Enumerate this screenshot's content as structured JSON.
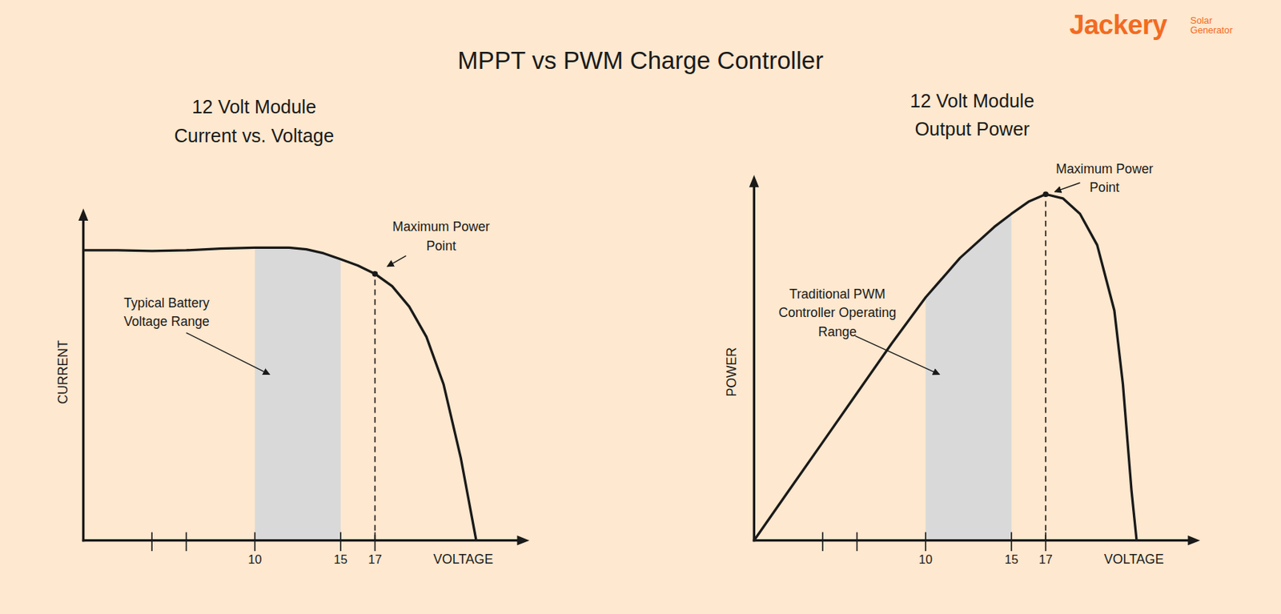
{
  "title": "MPPT vs PWM Charge Controller",
  "logo": {
    "text": "Jackery",
    "subtext": [
      "Solar",
      "Generator"
    ]
  },
  "chart_data": [
    {
      "type": "line",
      "title": [
        "12 Volt Module",
        "Current vs. Voltage"
      ],
      "x_label": "VOLTAGE",
      "y_label": "CURRENT",
      "x": [
        0,
        2,
        4,
        6,
        8,
        10,
        12,
        13,
        14,
        15,
        16,
        17,
        18,
        19,
        20,
        21,
        22,
        22.9
      ],
      "series": [
        {
          "color": "#1a1a1a",
          "values": [
            8.74,
            8.74,
            8.72,
            8.74,
            8.79,
            8.82,
            8.82,
            8.77,
            8.65,
            8.47,
            8.28,
            8.03,
            7.66,
            7.04,
            6.13,
            4.7,
            2.49,
            0
          ]
        }
      ],
      "xlim": [
        0,
        26
      ],
      "xticks": [
        {
          "value": 4,
          "label": null
        },
        {
          "value": 6,
          "label": null
        },
        10,
        15,
        17
      ],
      "ylim": [
        0,
        10
      ],
      "tick_labels": "x",
      "band": {
        "x": [
          10,
          15
        ],
        "label": [
          "Typical Battery",
          "Voltage Range"
        ]
      },
      "annotations": [
        {
          "text": [
            "Maximum Power",
            "Point"
          ],
          "x": 17,
          "y": 8.03
        }
      ]
    },
    {
      "type": "line",
      "title": [
        "12 Volt Module",
        "Output Power"
      ],
      "x_label": "VOLTAGE",
      "y_label": "POWER",
      "x": [
        0,
        2,
        4,
        6,
        8,
        10,
        12,
        14,
        15,
        16,
        17,
        18,
        19,
        20,
        21,
        21.5,
        22,
        22.3
      ],
      "series": [
        {
          "color": "#1a1a1a",
          "values": [
            0,
            29.6,
            59.1,
            88.7,
            118.2,
            146.3,
            170.0,
            188.7,
            196.6,
            203.9,
            208.4,
            205.9,
            196.6,
            177.8,
            138.4,
            94,
            30,
            0
          ]
        }
      ],
      "xlim": [
        0,
        26
      ],
      "xticks": [
        {
          "value": 4,
          "label": null
        },
        {
          "value": 6,
          "label": null
        },
        10,
        15,
        17
      ],
      "ylim": [
        0,
        220
      ],
      "tick_labels": "x",
      "band": {
        "x": [
          10,
          15
        ],
        "label": [
          "Traditional PWM",
          "Controller Operating",
          "Range"
        ]
      },
      "annotations": [
        {
          "text": [
            "Maximum Power",
            "Point"
          ],
          "x": 17,
          "y": 208.4
        }
      ]
    }
  ]
}
